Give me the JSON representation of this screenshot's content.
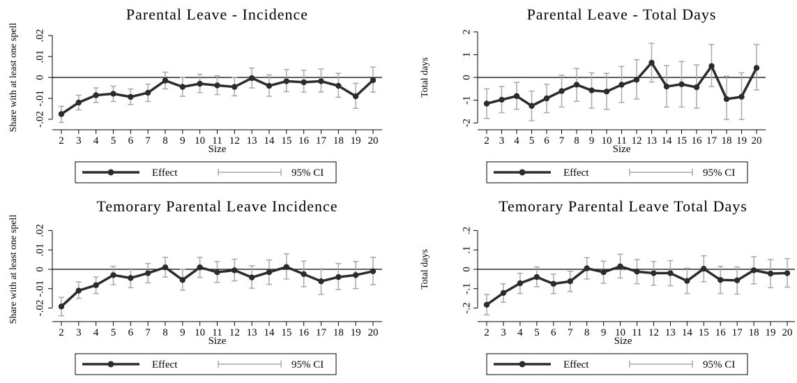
{
  "legend": {
    "effect_label": "Effect",
    "ci_label": "95% CI"
  },
  "chart_data": [
    {
      "type": "line",
      "title": "Parental Leave - Incidence",
      "xlabel": "Size",
      "ylabel": "Share with at least one spell",
      "x": [
        2,
        3,
        4,
        5,
        6,
        7,
        8,
        9,
        10,
        11,
        12,
        13,
        14,
        15,
        16,
        17,
        18,
        19,
        20
      ],
      "ylim": [
        -0.025,
        0.025
      ],
      "yticks": [
        -0.02,
        -0.01,
        0,
        0.01,
        0.02
      ],
      "ytick_labels": [
        "-.02",
        "-.01",
        "0",
        ".01",
        ".02"
      ],
      "series": [
        {
          "name": "Effect",
          "values": [
            -0.0175,
            -0.012,
            -0.0085,
            -0.0078,
            -0.0093,
            -0.0073,
            -0.0015,
            -0.0045,
            -0.003,
            -0.0038,
            -0.0045,
            -0.0003,
            -0.004,
            -0.0018,
            -0.0023,
            -0.0018,
            -0.004,
            -0.009,
            -0.0013
          ],
          "ci_low": [
            -0.0215,
            -0.0155,
            -0.012,
            -0.0115,
            -0.013,
            -0.0115,
            -0.0055,
            -0.009,
            -0.0072,
            -0.0082,
            -0.0088,
            -0.005,
            -0.009,
            -0.0068,
            -0.007,
            -0.007,
            -0.0095,
            -0.0148,
            -0.007
          ],
          "ci_high": [
            -0.0138,
            -0.0085,
            -0.005,
            -0.0042,
            -0.0055,
            -0.0032,
            0.0025,
            0.0,
            0.0015,
            0.0008,
            0.0,
            0.0045,
            0.0012,
            0.0038,
            0.0035,
            0.004,
            0.002,
            -0.0028,
            0.005
          ]
        }
      ],
      "grid": false,
      "legend_position": "bottom"
    },
    {
      "type": "line",
      "title": "Parental Leave - Total Days",
      "xlabel": "Size",
      "ylabel": "Total days",
      "x": [
        2,
        3,
        4,
        5,
        6,
        7,
        8,
        9,
        10,
        11,
        12,
        13,
        14,
        15,
        16,
        17,
        18,
        19,
        20
      ],
      "ylim": [
        -2.3,
        2.3
      ],
      "yticks": [
        -2,
        -1,
        0,
        1,
        2
      ],
      "ytick_labels": [
        "-2",
        "-1",
        "0",
        "1",
        "2"
      ],
      "series": [
        {
          "name": "Effect",
          "values": [
            -1.15,
            -0.98,
            -0.82,
            -1.25,
            -0.92,
            -0.6,
            -0.32,
            -0.57,
            -0.62,
            -0.32,
            -0.1,
            0.65,
            -0.4,
            -0.3,
            -0.43,
            0.5,
            -0.95,
            -0.85,
            0.42
          ],
          "ci_low": [
            -1.8,
            -1.55,
            -1.4,
            -1.9,
            -1.55,
            -1.3,
            -1.05,
            -1.35,
            -1.4,
            -1.1,
            -0.95,
            -0.2,
            -1.3,
            -1.3,
            -1.35,
            -0.4,
            -1.85,
            -1.85,
            -0.55
          ],
          "ci_high": [
            -0.5,
            -0.4,
            -0.22,
            -0.6,
            -0.3,
            0.1,
            0.4,
            0.2,
            0.18,
            0.48,
            0.78,
            1.5,
            0.52,
            0.7,
            0.55,
            1.45,
            0.05,
            0.2,
            1.45
          ]
        }
      ],
      "grid": false,
      "legend_position": "bottom"
    },
    {
      "type": "line",
      "title": "Temorary Parental Leave Incidence",
      "xlabel": "Size",
      "ylabel": "Share with at least one spell",
      "x": [
        2,
        3,
        4,
        5,
        6,
        7,
        8,
        9,
        10,
        11,
        12,
        13,
        14,
        15,
        16,
        17,
        18,
        19,
        20
      ],
      "ylim": [
        -0.027,
        0.027
      ],
      "yticks": [
        -0.02,
        -0.01,
        0,
        0.01,
        0.02
      ],
      "ytick_labels": [
        "-.02",
        "-.01",
        "0",
        ".01",
        ".02"
      ],
      "series": [
        {
          "name": "Effect",
          "values": [
            -0.0192,
            -0.011,
            -0.0082,
            -0.003,
            -0.0045,
            -0.002,
            0.001,
            -0.0055,
            0.001,
            -0.0015,
            -0.0005,
            -0.0042,
            -0.0015,
            0.0012,
            -0.0025,
            -0.0062,
            -0.004,
            -0.003,
            -0.001
          ],
          "ci_low": [
            -0.024,
            -0.015,
            -0.0125,
            -0.008,
            -0.0095,
            -0.007,
            -0.004,
            -0.0108,
            -0.0042,
            -0.0068,
            -0.006,
            -0.0098,
            -0.0078,
            -0.005,
            -0.009,
            -0.013,
            -0.0105,
            -0.01,
            -0.008
          ],
          "ci_high": [
            -0.0145,
            -0.0065,
            -0.004,
            0.0015,
            0.0003,
            0.003,
            0.0062,
            0.0,
            0.0062,
            0.004,
            0.0052,
            0.0018,
            0.0048,
            0.008,
            0.0042,
            0.0003,
            0.003,
            0.004,
            0.0062
          ]
        }
      ],
      "grid": false,
      "legend_position": "bottom"
    },
    {
      "type": "line",
      "title": "Temorary Parental Leave Total Days",
      "xlabel": "Size",
      "ylabel": "Total days",
      "x": [
        2,
        3,
        4,
        5,
        6,
        7,
        8,
        9,
        10,
        11,
        12,
        13,
        14,
        15,
        16,
        17,
        18,
        19,
        20
      ],
      "ylim": [
        -0.27,
        0.27
      ],
      "yticks": [
        -0.2,
        -0.1,
        0,
        0.1,
        0.2
      ],
      "ytick_labels": [
        "-.2",
        "-.1",
        "0",
        ".1",
        ".2"
      ],
      "series": [
        {
          "name": "Effect",
          "values": [
            -0.183,
            -0.122,
            -0.072,
            -0.04,
            -0.075,
            -0.062,
            0.005,
            -0.015,
            0.015,
            -0.012,
            -0.02,
            -0.02,
            -0.06,
            0.003,
            -0.055,
            -0.057,
            -0.005,
            -0.022,
            -0.02
          ],
          "ci_low": [
            -0.235,
            -0.17,
            -0.125,
            -0.09,
            -0.125,
            -0.115,
            -0.05,
            -0.072,
            -0.045,
            -0.075,
            -0.082,
            -0.085,
            -0.125,
            -0.065,
            -0.125,
            -0.128,
            -0.075,
            -0.095,
            -0.092
          ],
          "ci_high": [
            -0.13,
            -0.075,
            -0.02,
            0.012,
            -0.025,
            -0.01,
            0.06,
            0.042,
            0.078,
            0.05,
            0.04,
            0.045,
            0.005,
            0.07,
            0.015,
            0.012,
            0.065,
            0.05,
            0.055
          ]
        }
      ],
      "grid": false,
      "legend_position": "bottom"
    }
  ]
}
